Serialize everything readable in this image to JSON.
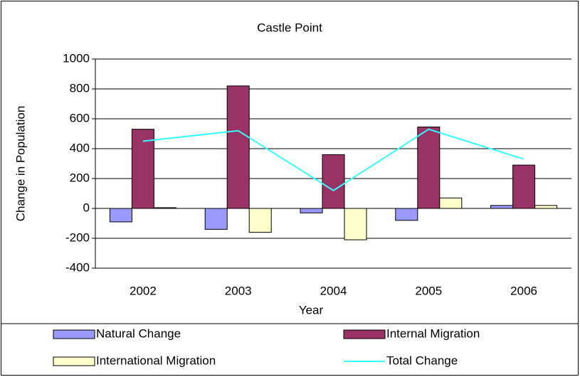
{
  "chart_data": {
    "type": "bar",
    "title": "Castle Point",
    "x_label": "Year",
    "y_label": "Change in Population",
    "categories": [
      "2002",
      "2003",
      "2004",
      "2005",
      "2006"
    ],
    "series": [
      {
        "name": "Natural Change",
        "color": "#9999ff",
        "values": [
          -90,
          -140,
          -30,
          -80,
          20
        ]
      },
      {
        "name": "Internal Migration",
        "color": "#993366",
        "values": [
          530,
          820,
          360,
          545,
          290
        ]
      },
      {
        "name": "International Migration",
        "color": "#ffffcc",
        "values": [
          5,
          -160,
          -210,
          70,
          20
        ]
      },
      {
        "name": "Total Change",
        "color": "#33ffff",
        "type": "line",
        "values": [
          450,
          520,
          120,
          530,
          330
        ]
      }
    ],
    "ylim": [
      -400,
      1000
    ],
    "yticks": [
      -400,
      -200,
      0,
      200,
      400,
      600,
      800,
      1000
    ],
    "grid": true,
    "legend": "bottom"
  }
}
